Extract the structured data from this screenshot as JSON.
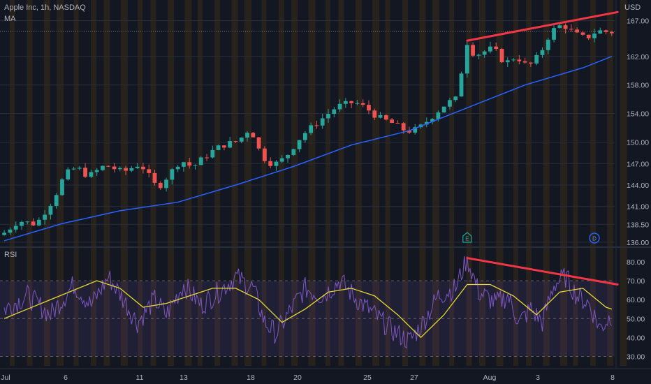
{
  "header": {
    "symbol_title": "Apple Inc, 1h, NASDAQ",
    "indicator_ma": "MA",
    "currency": "USD"
  },
  "rsi_panel": {
    "label": "RSI"
  },
  "markers": {
    "earnings": "E",
    "dividend": "D"
  },
  "colors": {
    "background": "#131722",
    "up_candle": "#26a69a",
    "down_candle": "#ef5350",
    "ma_line": "#2962ff",
    "rsi_line": "#7e57c2",
    "rsi_ma": "#e6d933",
    "trendline": "#f23645",
    "session_band": "#3a2c1a"
  },
  "chart_data": [
    {
      "type": "candlestick",
      "series": [
        {
          "name": "Apple Inc",
          "kind": "price"
        },
        {
          "name": "MA",
          "kind": "moving-average"
        }
      ],
      "x_ticks": [
        "Jul",
        "6",
        "11",
        "13",
        "18",
        "20",
        "25",
        "27",
        "Aug",
        "3",
        "8"
      ],
      "y_ticks": [
        136.0,
        138.5,
        141.0,
        144.0,
        147.0,
        150.0,
        154.0,
        158.0,
        162.0,
        167.0
      ],
      "ylim": [
        135.5,
        169.5
      ],
      "last_price": 165.5,
      "price_path": [
        [
          0,
          137.0
        ],
        [
          3,
          139.0
        ],
        [
          6,
          138.5
        ],
        [
          9,
          142.0
        ],
        [
          11,
          145.5
        ],
        [
          13,
          146.5
        ],
        [
          15,
          145.2
        ],
        [
          18,
          146.8
        ],
        [
          21,
          145.8
        ],
        [
          24,
          147.0
        ],
        [
          27,
          143.5
        ],
        [
          29,
          145.5
        ],
        [
          31,
          147.5
        ],
        [
          33,
          146.5
        ],
        [
          36,
          148.5
        ],
        [
          38,
          149.5
        ],
        [
          41,
          150.2
        ],
        [
          43,
          152.0
        ],
        [
          45,
          148.0
        ],
        [
          47,
          146.8
        ],
        [
          49,
          147.8
        ],
        [
          52,
          151.0
        ],
        [
          55,
          153.0
        ],
        [
          58,
          155.0
        ],
        [
          61,
          155.6
        ],
        [
          63,
          154.8
        ],
        [
          65,
          153.5
        ],
        [
          68,
          152.5
        ],
        [
          70,
          151.5
        ],
        [
          72,
          151.8
        ],
        [
          75,
          154.0
        ],
        [
          77,
          155.5
        ],
        [
          79,
          156.2
        ],
        [
          80,
          163.5
        ],
        [
          82,
          162.2
        ],
        [
          85,
          163.2
        ],
        [
          87,
          161.0
        ],
        [
          89,
          162.0
        ],
        [
          91,
          160.5
        ],
        [
          93,
          162.2
        ],
        [
          95,
          165.5
        ],
        [
          97,
          166.5
        ],
        [
          99,
          165.2
        ],
        [
          101,
          164.5
        ],
        [
          103,
          165.6
        ],
        [
          105,
          165.4
        ]
      ],
      "ma_path": [
        [
          0,
          136.2
        ],
        [
          10,
          138.6
        ],
        [
          20,
          140.4
        ],
        [
          30,
          141.6
        ],
        [
          40,
          144.0
        ],
        [
          50,
          146.6
        ],
        [
          60,
          149.6
        ],
        [
          70,
          151.6
        ],
        [
          80,
          154.8
        ],
        [
          90,
          158.0
        ],
        [
          100,
          160.4
        ],
        [
          105,
          162.0
        ]
      ],
      "trendline": [
        [
          80,
          164.2
        ],
        [
          106,
          168.2
        ]
      ],
      "marker_positions": [
        [
          80,
          "earnings"
        ],
        [
          102,
          "dividend"
        ]
      ]
    },
    {
      "type": "line",
      "series": [
        {
          "name": "RSI",
          "kind": "oscillator"
        },
        {
          "name": "RSI MA",
          "kind": "smoothing"
        }
      ],
      "y_ticks": [
        30.0,
        40.0,
        50.0,
        60.0,
        70.0,
        80.0
      ],
      "ylim": [
        25,
        87
      ],
      "overbought": 70,
      "oversold": 30,
      "midline": 50,
      "rsi_path": [
        [
          0,
          55
        ],
        [
          4,
          62
        ],
        [
          8,
          52
        ],
        [
          12,
          68
        ],
        [
          15,
          57
        ],
        [
          18,
          72
        ],
        [
          20,
          63
        ],
        [
          23,
          48
        ],
        [
          26,
          60
        ],
        [
          28,
          52
        ],
        [
          31,
          68
        ],
        [
          34,
          57
        ],
        [
          37,
          64
        ],
        [
          40,
          72
        ],
        [
          43,
          66
        ],
        [
          45,
          48
        ],
        [
          47,
          42
        ],
        [
          49,
          52
        ],
        [
          52,
          66
        ],
        [
          55,
          62
        ],
        [
          58,
          70
        ],
        [
          61,
          60
        ],
        [
          64,
          52
        ],
        [
          67,
          44
        ],
        [
          70,
          38
        ],
        [
          72,
          46
        ],
        [
          75,
          62
        ],
        [
          78,
          66
        ],
        [
          80,
          82
        ],
        [
          82,
          64
        ],
        [
          85,
          58
        ],
        [
          87,
          62
        ],
        [
          89,
          48
        ],
        [
          91,
          55
        ],
        [
          93,
          48
        ],
        [
          95,
          68
        ],
        [
          97,
          72
        ],
        [
          99,
          62
        ],
        [
          101,
          58
        ],
        [
          103,
          45
        ],
        [
          105,
          52
        ]
      ],
      "rsi_ma_path": [
        [
          0,
          50
        ],
        [
          4,
          55
        ],
        [
          8,
          60
        ],
        [
          12,
          65
        ],
        [
          16,
          70
        ],
        [
          20,
          66
        ],
        [
          24,
          56
        ],
        [
          28,
          58
        ],
        [
          32,
          62
        ],
        [
          36,
          66
        ],
        [
          40,
          66
        ],
        [
          44,
          60
        ],
        [
          48,
          48
        ],
        [
          52,
          55
        ],
        [
          56,
          64
        ],
        [
          60,
          66
        ],
        [
          64,
          62
        ],
        [
          68,
          52
        ],
        [
          72,
          40
        ],
        [
          76,
          52
        ],
        [
          80,
          68
        ],
        [
          84,
          68
        ],
        [
          88,
          62
        ],
        [
          92,
          52
        ],
        [
          96,
          64
        ],
        [
          100,
          66
        ],
        [
          104,
          56
        ],
        [
          105,
          55
        ]
      ],
      "trendline": [
        [
          80,
          82
        ],
        [
          106,
          68
        ]
      ]
    }
  ]
}
